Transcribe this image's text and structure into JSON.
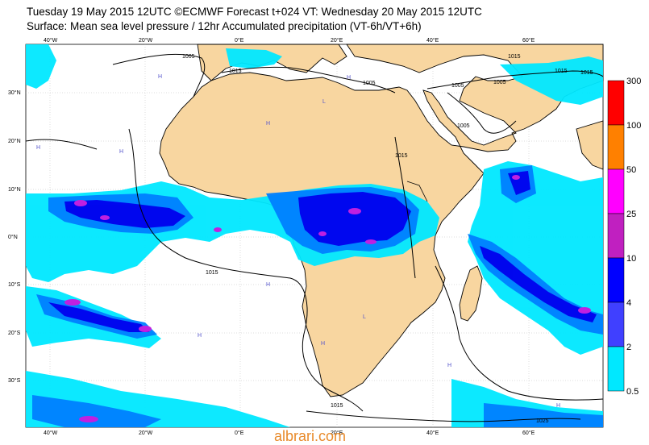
{
  "header": {
    "line1": "Tuesday 19 May 2015 12UTC ©ECMWF Forecast t+024 VT: Wednesday 20 May 2015 12UTC",
    "line2": "Surface: Mean sea level pressure / 12hr Accumulated precipitation (VT-6h/VT+6h)"
  },
  "axes": {
    "lon_top": [
      "40°W",
      "20°W",
      "0°E",
      "20°E",
      "40°E",
      "60°E"
    ],
    "lon_bottom": [
      "40°W",
      "20°W",
      "0°E",
      "20°E",
      "40°E",
      "60°E"
    ],
    "lat": [
      "30°N",
      "20°N",
      "10°N",
      "0°N",
      "10°S",
      "20°S",
      "30°S"
    ]
  },
  "colorbar": {
    "labels": [
      "300",
      "100",
      "50",
      "25",
      "10",
      "4",
      "2",
      "0.5"
    ],
    "colors": [
      "#ff0000",
      "#ff8000",
      "#ff00ff",
      "#c020c0",
      "#0000ff",
      "#4040ff",
      "#0090ff",
      "#00ffff"
    ]
  },
  "isobars": [
    "1005",
    "1015",
    "1005",
    "1015",
    "1005",
    "1005",
    "1015",
    "1015",
    "1005",
    "1015",
    "1015",
    "1015",
    "1025"
  ],
  "colors": {
    "land": "#f8d6a0",
    "ocean": "#ffffff",
    "precip_light": "#00e8ff",
    "precip_mid": "#0080ff",
    "precip_heavy": "#0000ee",
    "precip_extreme": "#a020e0"
  },
  "watermark": "albrari.com"
}
